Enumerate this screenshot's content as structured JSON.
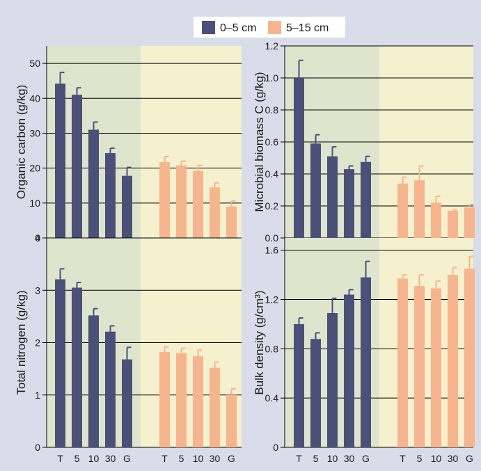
{
  "colors": {
    "background": "#d9dde9",
    "panel_left_bg": "#dfe5cd",
    "panel_right_bg": "#f5f0cd",
    "series_0_5": "#4a5078",
    "series_5_15": "#f6b58e",
    "gridline": "#000000"
  },
  "legend": {
    "placement": "top-center",
    "items": [
      {
        "label": "0–5 cm",
        "color": "#4a5078"
      },
      {
        "label": "5–15 cm",
        "color": "#f6b58e"
      }
    ]
  },
  "chart_data": [
    {
      "type": "bar",
      "ylabel": "Organic carbon (g/kg)",
      "ylim": [
        0,
        55
      ],
      "yticks": [
        "0",
        "10",
        "20",
        "30",
        "40",
        "50"
      ],
      "ytick_values": [
        0,
        10,
        20,
        30,
        40,
        50
      ],
      "categories": [
        "T",
        "5",
        "10",
        "30",
        "G"
      ],
      "show_xticks": false,
      "grid": true,
      "series": [
        {
          "name": "0–5 cm",
          "values": [
            44.2,
            41.0,
            31.0,
            24.3,
            17.8
          ],
          "errors": [
            3.2,
            2.0,
            2.2,
            1.4,
            2.4
          ]
        },
        {
          "name": "5–15 cm",
          "values": [
            21.7,
            20.8,
            19.2,
            14.5,
            9.0
          ],
          "errors": [
            1.6,
            1.2,
            1.6,
            1.3,
            1.6
          ]
        }
      ]
    },
    {
      "type": "bar",
      "ylabel": "Microbial biomass C (g/kg)",
      "ylim": [
        0,
        1.2
      ],
      "yticks": [
        "0.0",
        "0.2",
        "0.4",
        "0.6",
        "0.8",
        "1.0",
        "1.2"
      ],
      "ytick_values": [
        0,
        0.2,
        0.4,
        0.6,
        0.8,
        1.0,
        1.2
      ],
      "categories": [
        "T",
        "5",
        "10",
        "30",
        "G"
      ],
      "show_xticks": false,
      "grid": true,
      "series": [
        {
          "name": "0–5 cm",
          "values": [
            1.0,
            0.59,
            0.51,
            0.43,
            0.475
          ],
          "errors": [
            0.11,
            0.055,
            0.06,
            0.02,
            0.035
          ]
        },
        {
          "name": "5–15 cm",
          "values": [
            0.34,
            0.36,
            0.22,
            0.17,
            0.19
          ],
          "errors": [
            0.04,
            0.09,
            0.04,
            0.005,
            0.02
          ]
        }
      ]
    },
    {
      "type": "bar",
      "ylabel": "Total nitrogen (g/kg)",
      "ylim": [
        0,
        4
      ],
      "yticks": [
        "0",
        "1",
        "2",
        "3",
        "4"
      ],
      "ytick_values": [
        0,
        1,
        2,
        3,
        4
      ],
      "categories": [
        "T",
        "5",
        "10",
        "30",
        "G"
      ],
      "show_xticks": true,
      "grid": true,
      "series": [
        {
          "name": "0–5 cm",
          "values": [
            3.21,
            3.05,
            2.52,
            2.21,
            1.68
          ],
          "errors": [
            0.2,
            0.1,
            0.13,
            0.11,
            0.23
          ]
        },
        {
          "name": "5–15 cm",
          "values": [
            1.82,
            1.8,
            1.74,
            1.52,
            1.0
          ],
          "errors": [
            0.1,
            0.09,
            0.12,
            0.11,
            0.12
          ]
        }
      ]
    },
    {
      "type": "bar",
      "ylabel": "Bulk density (g/cm³)",
      "ylim": [
        0,
        1.7
      ],
      "yticks": [
        "0",
        "0.4",
        "0.8",
        "1.2",
        "1.6"
      ],
      "ytick_values": [
        0,
        0.4,
        0.8,
        1.2,
        1.6
      ],
      "categories": [
        "T",
        "5",
        "10",
        "30",
        "G"
      ],
      "show_xticks": true,
      "grid": true,
      "series": [
        {
          "name": "0–5 cm",
          "values": [
            1.0,
            0.88,
            1.09,
            1.24,
            1.38
          ],
          "errors": [
            0.05,
            0.05,
            0.12,
            0.04,
            0.13
          ]
        },
        {
          "name": "5–15 cm",
          "values": [
            1.37,
            1.31,
            1.29,
            1.4,
            1.45
          ],
          "errors": [
            0.03,
            0.09,
            0.06,
            0.06,
            0.1
          ]
        }
      ]
    }
  ]
}
